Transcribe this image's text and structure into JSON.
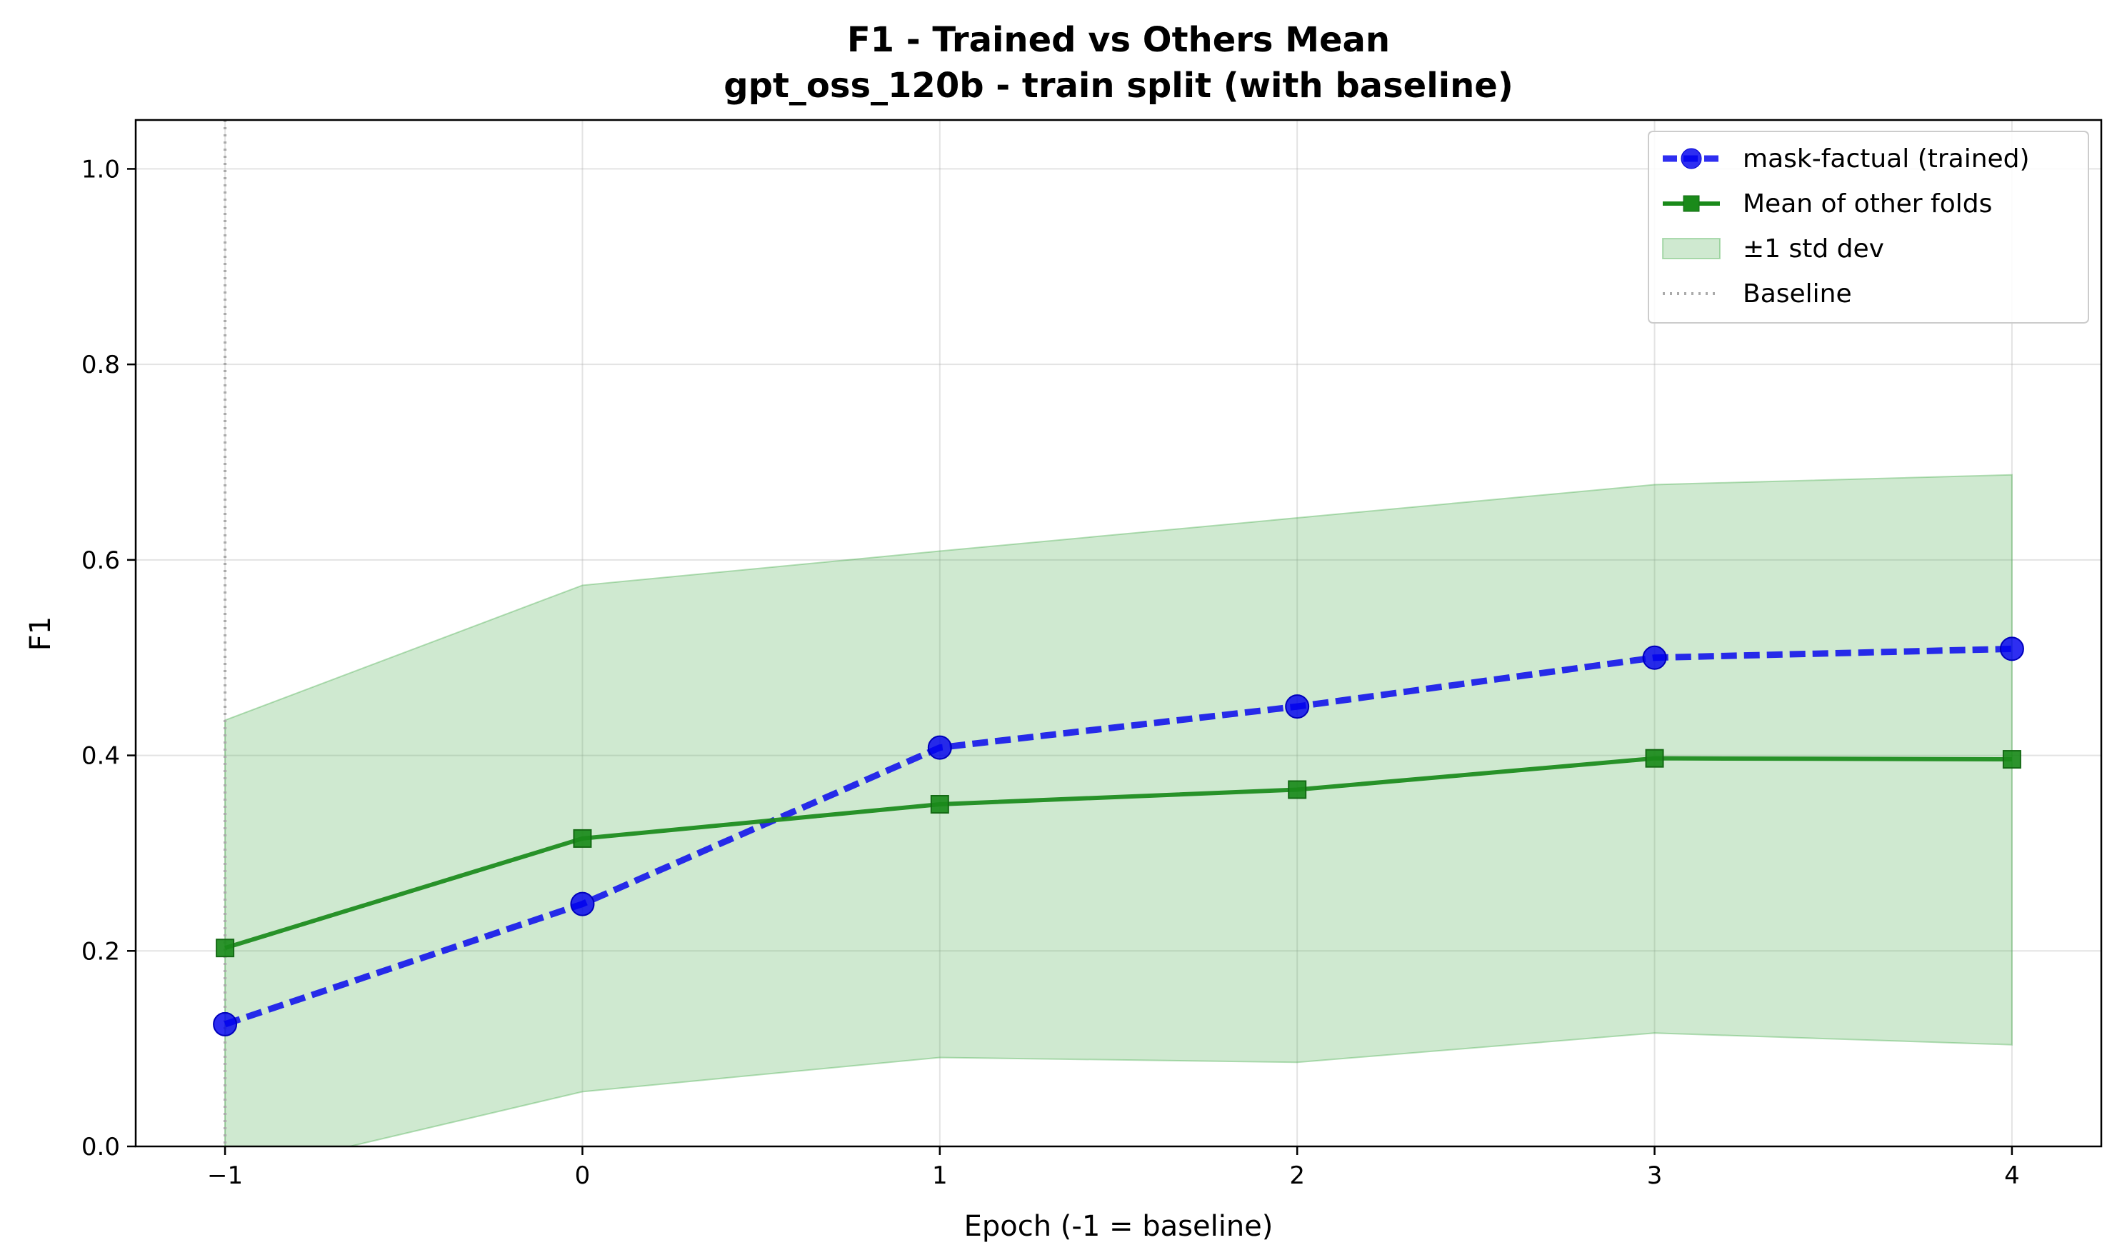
{
  "chart_data": {
    "type": "line",
    "title": "F1 - Trained vs Others Mean",
    "subtitle": "gpt_oss_120b - train split (with baseline)",
    "xlabel": "Epoch (-1 = baseline)",
    "ylabel": "F1",
    "xlim": [
      -1.25,
      4.25
    ],
    "ylim": [
      0.0,
      1.05
    ],
    "x": [
      -1,
      0,
      1,
      2,
      3,
      4
    ],
    "xticks": [
      -1,
      0,
      1,
      2,
      3,
      4
    ],
    "xtick_labels": [
      "−1",
      "0",
      "1",
      "2",
      "3",
      "4"
    ],
    "yticks": [
      0.0,
      0.2,
      0.4,
      0.6,
      0.8,
      1.0
    ],
    "ytick_labels": [
      "0.0",
      "0.2",
      "0.4",
      "0.6",
      "0.8",
      "1.0"
    ],
    "grid": true,
    "legend_position": "top-right",
    "series": [
      {
        "name": "mask-factual (trained)",
        "values": [
          0.125,
          0.248,
          0.408,
          0.45,
          0.5,
          0.509
        ],
        "color": "#0000ee",
        "line_style": "dashed",
        "marker": "circle"
      },
      {
        "name": "Mean of other folds",
        "values": [
          0.203,
          0.315,
          0.35,
          0.365,
          0.397,
          0.396
        ],
        "color": "#1a8a1a",
        "line_style": "solid",
        "marker": "square"
      }
    ],
    "band": {
      "name": "±1 std dev",
      "upper": [
        0.436,
        0.574,
        0.609,
        0.643,
        0.677,
        0.687
      ],
      "lower": [
        -0.03,
        0.056,
        0.091,
        0.086,
        0.116,
        0.104
      ],
      "color": "#4caf50"
    },
    "baseline": {
      "name": "Baseline",
      "x": -1,
      "color": "#aaaaaa",
      "line_style": "dotted"
    }
  }
}
